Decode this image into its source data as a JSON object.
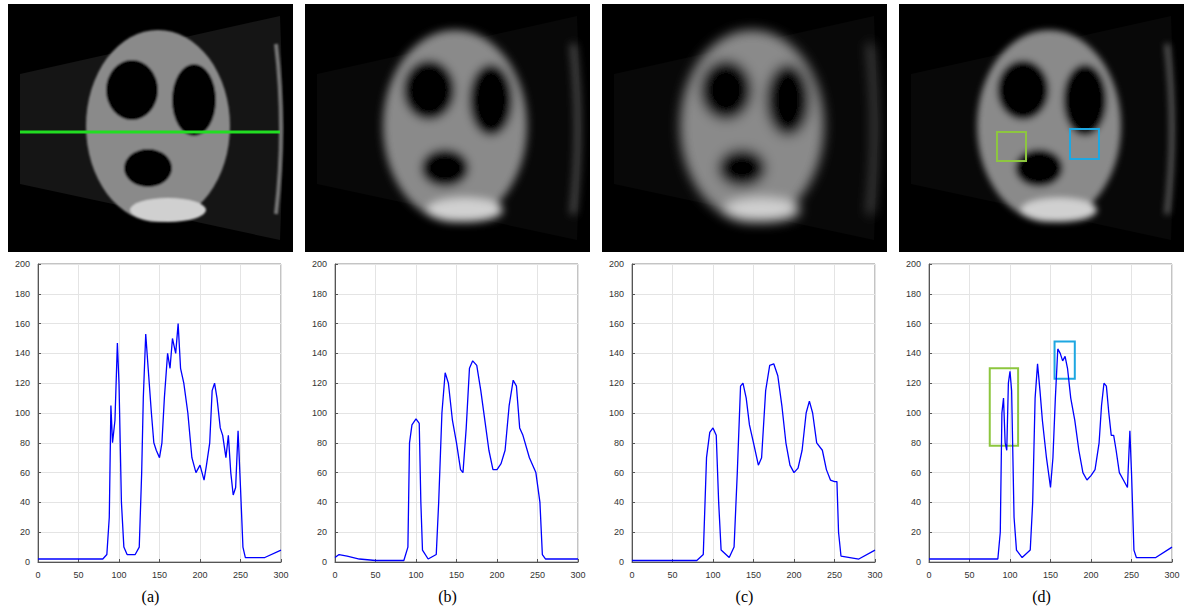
{
  "chart_data": [
    {
      "type": "line",
      "title": "(a)",
      "color": "#0000ff",
      "grid": true,
      "xlim": [
        0,
        300
      ],
      "ylim": [
        0,
        200
      ],
      "xticks": [
        0,
        50,
        100,
        150,
        200,
        250,
        300
      ],
      "yticks": [
        0,
        20,
        40,
        60,
        80,
        100,
        120,
        140,
        160,
        180,
        200
      ],
      "x": [
        0,
        20,
        40,
        60,
        80,
        85,
        88,
        90,
        92,
        95,
        98,
        100,
        103,
        106,
        110,
        120,
        125,
        128,
        130,
        133,
        136,
        140,
        143,
        146,
        150,
        153,
        156,
        160,
        163,
        166,
        170,
        173,
        176,
        180,
        185,
        190,
        195,
        200,
        205,
        208,
        212,
        215,
        218,
        221,
        225,
        228,
        232,
        235,
        238,
        241,
        244,
        247,
        250,
        253,
        256,
        280,
        300
      ],
      "values": [
        2,
        2,
        2,
        2,
        2,
        5,
        30,
        105,
        80,
        95,
        147,
        120,
        40,
        10,
        5,
        5,
        10,
        60,
        110,
        153,
        130,
        100,
        80,
        75,
        70,
        80,
        110,
        140,
        130,
        150,
        140,
        160,
        130,
        120,
        100,
        70,
        60,
        65,
        55,
        65,
        80,
        115,
        120,
        110,
        90,
        85,
        70,
        85,
        60,
        45,
        50,
        88,
        50,
        10,
        3,
        3,
        8
      ]
    },
    {
      "type": "line",
      "title": "(b)",
      "color": "#0000ff",
      "grid": true,
      "xlim": [
        0,
        300
      ],
      "ylim": [
        0,
        200
      ],
      "xticks": [
        0,
        50,
        100,
        150,
        200,
        250,
        300
      ],
      "yticks": [
        0,
        20,
        40,
        60,
        80,
        100,
        120,
        140,
        160,
        180,
        200
      ],
      "x": [
        0,
        5,
        15,
        30,
        50,
        85,
        90,
        92,
        95,
        100,
        104,
        106,
        108,
        115,
        125,
        128,
        132,
        136,
        140,
        145,
        150,
        155,
        158,
        162,
        166,
        170,
        175,
        180,
        185,
        190,
        195,
        200,
        205,
        210,
        215,
        220,
        224,
        228,
        232,
        240,
        248,
        253,
        256,
        260,
        300
      ],
      "values": [
        3,
        5,
        4,
        2,
        1,
        1,
        10,
        80,
        92,
        96,
        93,
        40,
        8,
        2,
        5,
        40,
        100,
        127,
        120,
        95,
        80,
        62,
        60,
        90,
        130,
        135,
        132,
        115,
        95,
        75,
        62,
        62,
        66,
        75,
        105,
        122,
        118,
        90,
        85,
        70,
        60,
        40,
        5,
        2,
        2
      ]
    },
    {
      "type": "line",
      "title": "(c)",
      "color": "#0000ff",
      "grid": true,
      "xlim": [
        0,
        300
      ],
      "ylim": [
        0,
        200
      ],
      "xticks": [
        0,
        50,
        100,
        150,
        200,
        250,
        300
      ],
      "yticks": [
        0,
        20,
        40,
        60,
        80,
        100,
        120,
        140,
        160,
        180,
        200
      ],
      "x": [
        0,
        40,
        80,
        88,
        92,
        96,
        100,
        104,
        107,
        110,
        120,
        126,
        130,
        134,
        137,
        141,
        145,
        150,
        156,
        160,
        165,
        170,
        175,
        180,
        185,
        190,
        195,
        200,
        205,
        210,
        215,
        219,
        223,
        228,
        235,
        240,
        245,
        250,
        253,
        255,
        258,
        280,
        300
      ],
      "values": [
        1,
        1,
        1,
        5,
        70,
        87,
        90,
        85,
        40,
        8,
        3,
        10,
        60,
        118,
        120,
        110,
        92,
        80,
        65,
        70,
        115,
        132,
        133,
        125,
        105,
        80,
        65,
        60,
        63,
        75,
        100,
        108,
        100,
        80,
        75,
        62,
        55,
        54,
        54,
        20,
        4,
        2,
        8
      ]
    },
    {
      "type": "line",
      "title": "(d)",
      "color": "#0000ff",
      "grid": true,
      "xlim": [
        0,
        300
      ],
      "ylim": [
        0,
        200
      ],
      "xticks": [
        0,
        50,
        100,
        150,
        200,
        250,
        300
      ],
      "yticks": [
        0,
        20,
        40,
        60,
        80,
        100,
        120,
        140,
        160,
        180,
        200
      ],
      "x": [
        0,
        40,
        85,
        88,
        90,
        92,
        94,
        96,
        98,
        100,
        102,
        105,
        108,
        115,
        125,
        128,
        131,
        134,
        137,
        140,
        145,
        150,
        153,
        156,
        159,
        162,
        165,
        168,
        171,
        175,
        180,
        185,
        190,
        195,
        200,
        205,
        210,
        213,
        216,
        219,
        222,
        225,
        228,
        231,
        235,
        240,
        245,
        248,
        250,
        253,
        256,
        280,
        300
      ],
      "values": [
        2,
        2,
        2,
        20,
        100,
        110,
        80,
        75,
        120,
        128,
        115,
        30,
        8,
        3,
        8,
        40,
        110,
        133,
        115,
        95,
        70,
        50,
        70,
        110,
        143,
        140,
        135,
        138,
        130,
        110,
        95,
        75,
        60,
        55,
        58,
        62,
        80,
        105,
        120,
        118,
        100,
        85,
        85,
        75,
        60,
        55,
        50,
        88,
        60,
        8,
        3,
        3,
        10
      ],
      "boxes": [
        {
          "color": "#8dc63f",
          "x": [
            75,
            110
          ],
          "y": [
            78,
            130
          ]
        },
        {
          "color": "#1ea7e1",
          "x": [
            155,
            180
          ],
          "y": [
            123,
            148
          ]
        }
      ]
    }
  ]
}
